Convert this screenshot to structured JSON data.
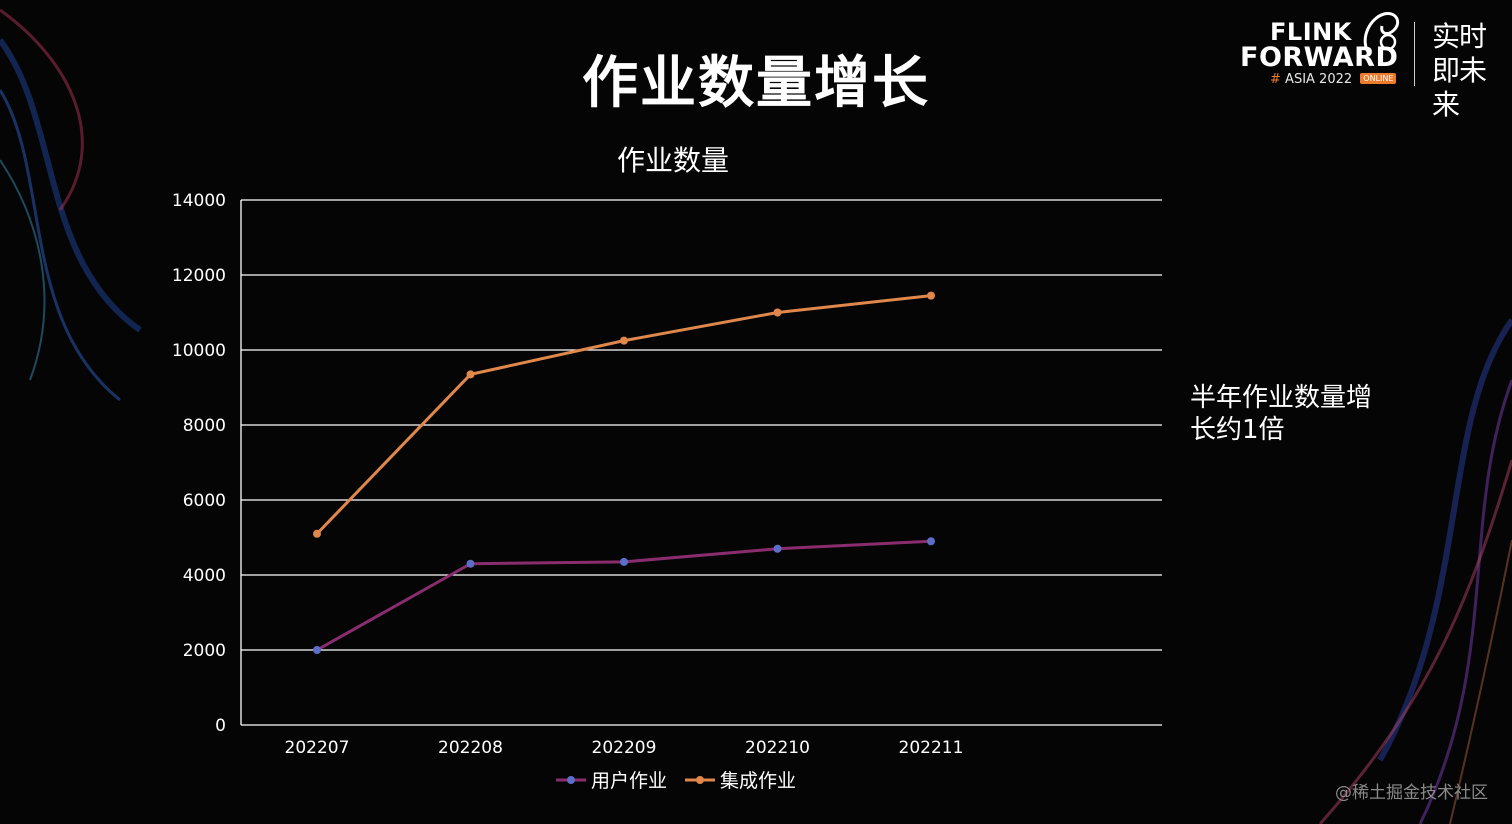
{
  "slide": {
    "title": "作业数量增长",
    "side_note": "半年作业数量增长约1倍",
    "watermark": "@稀土掘金技术社区"
  },
  "logo": {
    "line1": "FLINK",
    "line2": "FORWARD",
    "hash": "#",
    "event": "ASIA 2022",
    "badge": "ONLINE",
    "tagline": "实时即未来"
  },
  "colors": {
    "background": "#050506",
    "gridline": "#ffffff",
    "series_user": "#8a2d6f",
    "series_user_marker": "#5b6fc8",
    "series_integrated": "#e0884b",
    "accent_orange": "#ee7a2c"
  },
  "chart_data": {
    "type": "line",
    "title": "作业数量",
    "xlabel": "",
    "ylabel": "",
    "categories": [
      "202207",
      "202208",
      "202209",
      "202210",
      "202211"
    ],
    "ylim": [
      0,
      14000
    ],
    "yticks": [
      "0",
      "2000",
      "4000",
      "6000",
      "8000",
      "10000",
      "12000",
      "14000"
    ],
    "grid": true,
    "legend_position": "bottom",
    "series": [
      {
        "name": "用户作业",
        "values": [
          2000,
          4300,
          4350,
          4700,
          4900
        ]
      },
      {
        "name": "集成作业",
        "values": [
          5100,
          9350,
          10250,
          11000,
          11450
        ]
      }
    ]
  }
}
